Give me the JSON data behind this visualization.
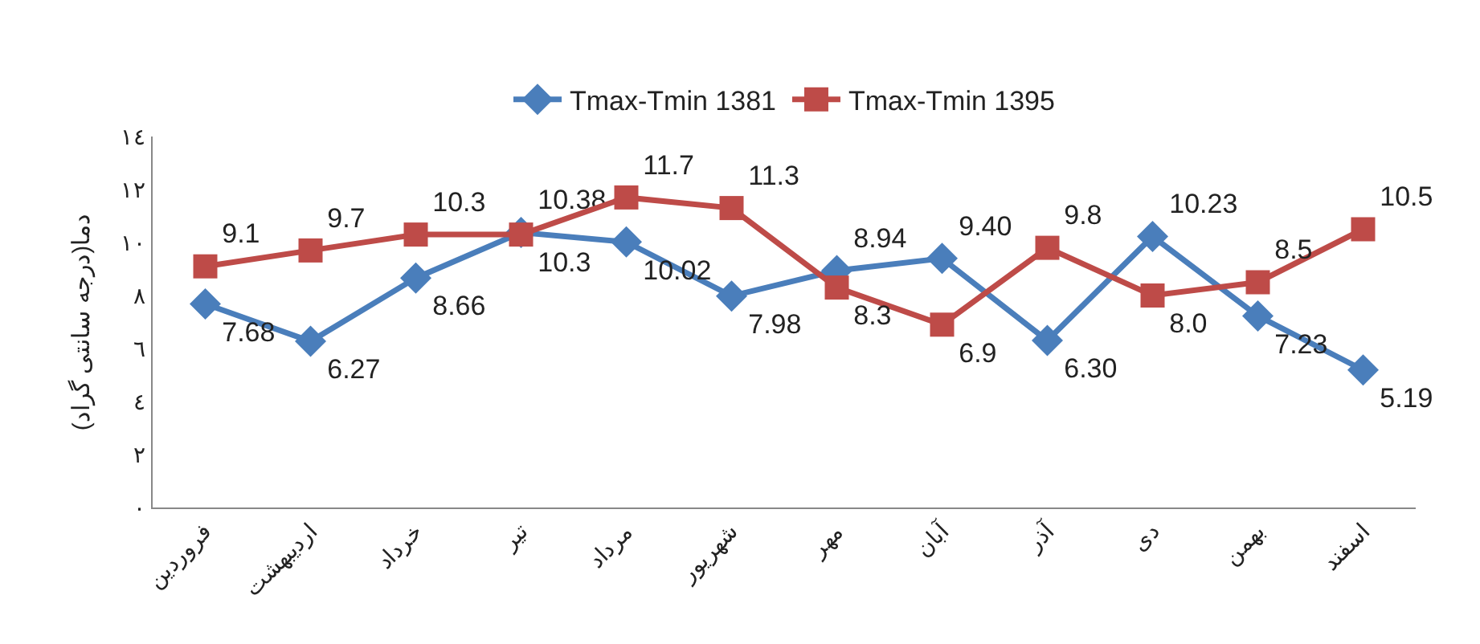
{
  "chart_data": {
    "type": "line",
    "ylabel": "دما(درجه سانتی گراد)",
    "categories": [
      "فروردین",
      "اردیبهشت",
      "خرداد",
      "تیر",
      "مرداد",
      "شهریور",
      "مهر",
      "آبان",
      "آذر",
      "دی",
      "بهمن",
      "اسفند"
    ],
    "series": [
      {
        "name": "Tmax-Tmin 1381",
        "color": "#4a7ebb",
        "marker": "diamond",
        "values": [
          7.68,
          6.27,
          8.66,
          10.38,
          10.02,
          7.98,
          8.94,
          9.4,
          6.3,
          10.23,
          7.23,
          5.19
        ],
        "value_labels": [
          "7.68",
          "6.27",
          "8.66",
          "10.38",
          "10.02",
          "7.98",
          "8.94",
          "9.40",
          "6.30",
          "10.23",
          "7.23",
          "5.19"
        ]
      },
      {
        "name": "Tmax-Tmin 1395",
        "color": "#be4b48",
        "marker": "square",
        "values": [
          9.1,
          9.7,
          10.3,
          10.3,
          11.7,
          11.3,
          8.3,
          6.9,
          9.8,
          8.0,
          8.5,
          10.5
        ],
        "value_labels": [
          "9.1",
          "9.7",
          "10.3",
          "10.3",
          "11.7",
          "11.3",
          "8.3",
          "6.9",
          "9.8",
          "8.0",
          "8.5",
          "10.5"
        ]
      }
    ],
    "ylim": [
      0,
      14
    ],
    "yticks": [
      {
        "value": 0,
        "label": "٠"
      },
      {
        "value": 2,
        "label": "٢"
      },
      {
        "value": 4,
        "label": "٤"
      },
      {
        "value": 6,
        "label": "٦"
      },
      {
        "value": 8,
        "label": "٨"
      },
      {
        "value": 10,
        "label": "١٠"
      },
      {
        "value": 12,
        "label": "١٢"
      },
      {
        "value": 14,
        "label": "١٤"
      }
    ],
    "legend": "top",
    "line_style": "solid"
  }
}
